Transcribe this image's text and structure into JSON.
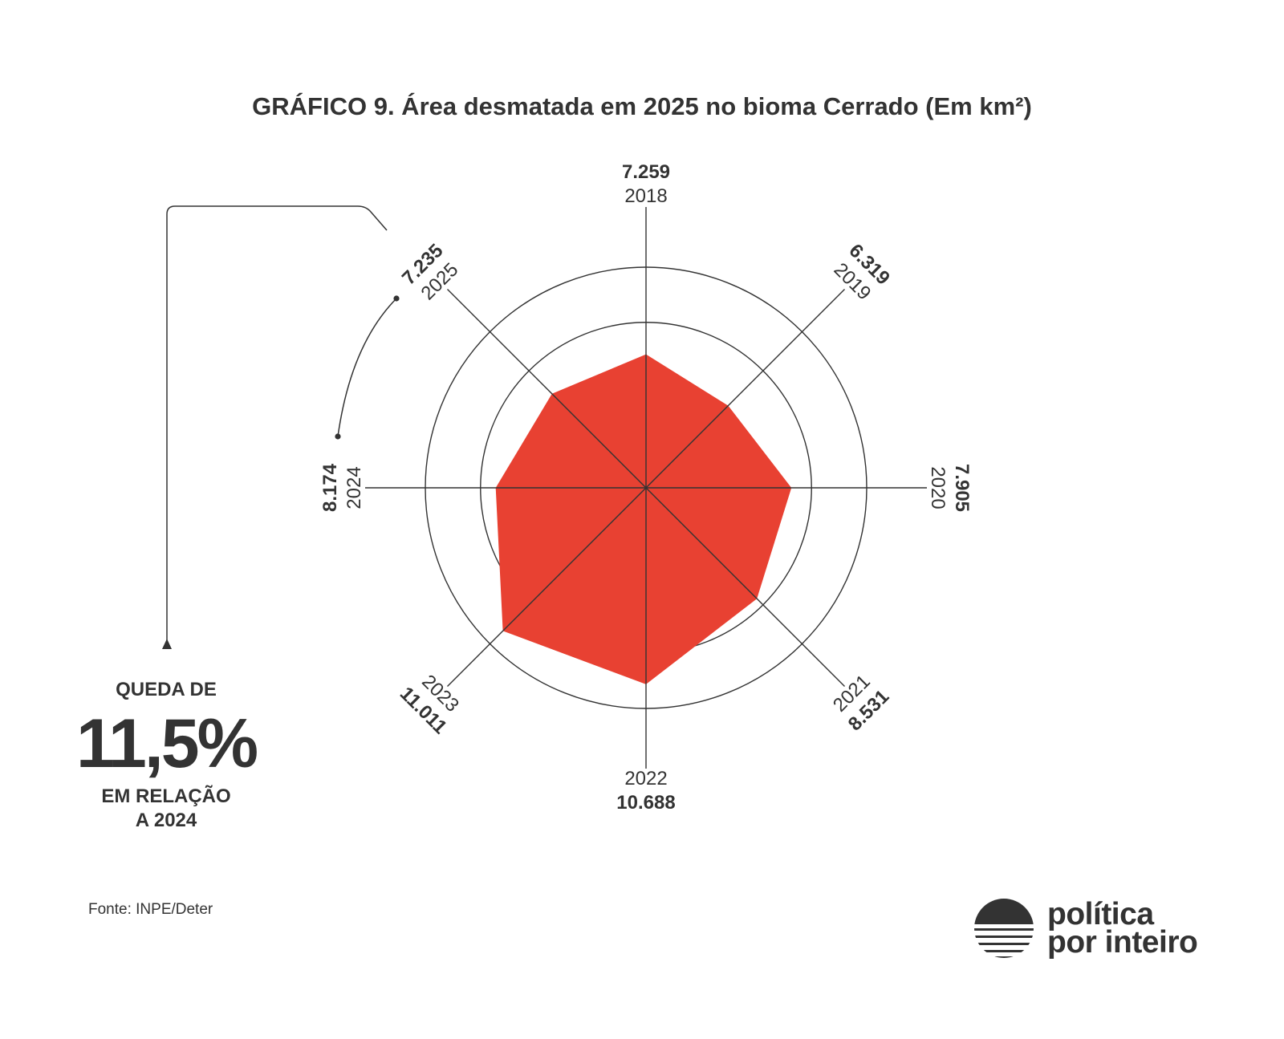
{
  "title": "GRÁFICO 9.  Área desmatada em 2025 no bioma Cerrado (Em km²)",
  "chart_data": {
    "type": "radar",
    "title": "GRÁFICO 9.  Área desmatada em 2025 no bioma Cerrado (Em km²)",
    "categories": [
      "2018",
      "2019",
      "2020",
      "2021",
      "2022",
      "2023",
      "2024",
      "2025"
    ],
    "values": [
      7259,
      6319,
      7905,
      8531,
      10688,
      11011,
      8174,
      7235
    ],
    "value_labels": [
      "7.259",
      "6.319",
      "7.905",
      "8.531",
      "10.688",
      "11.011",
      "8.174",
      "7.235"
    ],
    "rlim": [
      0,
      12000
    ],
    "rings": [
      3000,
      6000,
      9000,
      12000
    ],
    "series_color": "#e84132"
  },
  "callout": {
    "line1": "QUEDA DE",
    "big": "11,5%",
    "line2": "EM RELAÇÃO",
    "line3": "A 2024"
  },
  "source": "Fonte: INPE/Deter",
  "brand": {
    "line1": "política",
    "line2": "por inteiro",
    "icon": "sunset-logo-icon"
  },
  "colors": {
    "text": "#333333",
    "accent": "#e84132"
  }
}
